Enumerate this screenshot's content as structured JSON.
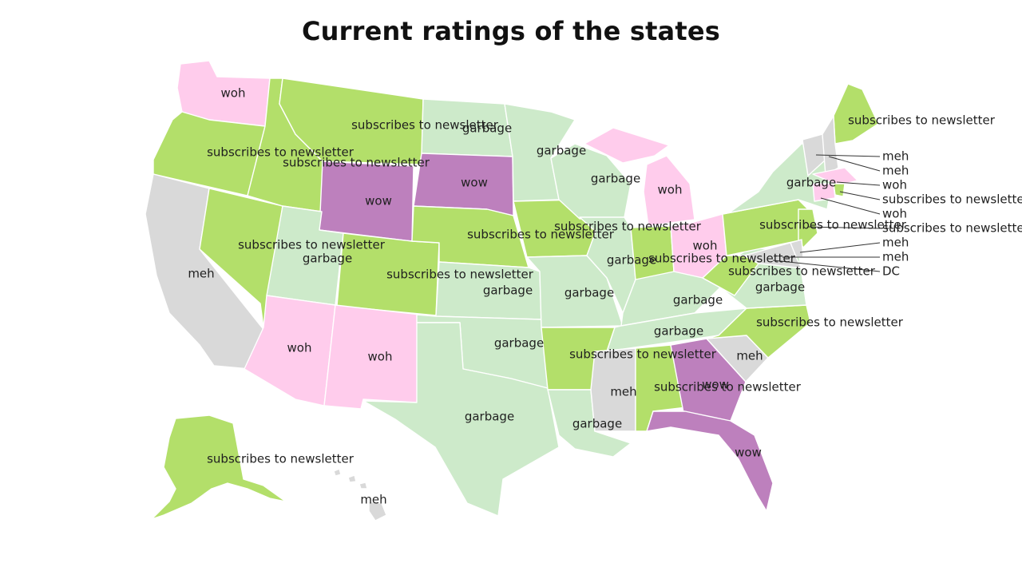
{
  "title": "Current ratings of the states",
  "palette": {
    "wow": "#bd80bd",
    "woh": "#ffccec",
    "subscribes to newsletter": "#b3df6a",
    "garbage": "#cdeaca",
    "meh": "#d9d9d9"
  },
  "states": [
    {
      "id": "WA",
      "rating": "woh"
    },
    {
      "id": "OR",
      "rating": "subscribes to newsletter"
    },
    {
      "id": "CA",
      "rating": "meh"
    },
    {
      "id": "NV",
      "rating": "subscribes to newsletter"
    },
    {
      "id": "ID",
      "rating": "subscribes to newsletter"
    },
    {
      "id": "MT",
      "rating": "subscribes to newsletter"
    },
    {
      "id": "WY",
      "rating": "wow"
    },
    {
      "id": "UT",
      "rating": "garbage"
    },
    {
      "id": "AZ",
      "rating": "woh"
    },
    {
      "id": "CO",
      "rating": "subscribes to newsletter"
    },
    {
      "id": "NM",
      "rating": "woh"
    },
    {
      "id": "ND",
      "rating": "garbage"
    },
    {
      "id": "SD",
      "rating": "wow"
    },
    {
      "id": "NE",
      "rating": "subscribes to newsletter"
    },
    {
      "id": "KS",
      "rating": "garbage"
    },
    {
      "id": "OK",
      "rating": "garbage"
    },
    {
      "id": "TX",
      "rating": "garbage"
    },
    {
      "id": "MN",
      "rating": "garbage"
    },
    {
      "id": "IA",
      "rating": "subscribes to newsletter"
    },
    {
      "id": "MO",
      "rating": "garbage"
    },
    {
      "id": "AR",
      "rating": "subscribes to newsletter"
    },
    {
      "id": "LA",
      "rating": "garbage"
    },
    {
      "id": "WI",
      "rating": "garbage"
    },
    {
      "id": "IL",
      "rating": "garbage"
    },
    {
      "id": "MI",
      "rating": "woh"
    },
    {
      "id": "IN",
      "rating": "subscribes to newsletter"
    },
    {
      "id": "OH",
      "rating": "woh"
    },
    {
      "id": "KY",
      "rating": "garbage"
    },
    {
      "id": "TN",
      "rating": "garbage"
    },
    {
      "id": "MS",
      "rating": "meh"
    },
    {
      "id": "AL",
      "rating": "subscribes to newsletter"
    },
    {
      "id": "GA",
      "rating": "wow"
    },
    {
      "id": "FL",
      "rating": "wow"
    },
    {
      "id": "SC",
      "rating": "meh"
    },
    {
      "id": "NC",
      "rating": "subscribes to newsletter"
    },
    {
      "id": "VA",
      "rating": "garbage"
    },
    {
      "id": "WV",
      "rating": "subscribes to newsletter"
    },
    {
      "id": "PA",
      "rating": "subscribes to newsletter"
    },
    {
      "id": "NY",
      "rating": "garbage"
    },
    {
      "id": "ME",
      "rating": "subscribes to newsletter"
    },
    {
      "id": "VT",
      "rating": "meh"
    },
    {
      "id": "NH",
      "rating": "meh"
    },
    {
      "id": "MA",
      "rating": "woh"
    },
    {
      "id": "RI",
      "rating": "subscribes to newsletter"
    },
    {
      "id": "CT",
      "rating": "woh"
    },
    {
      "id": "NJ",
      "rating": "subscribes to newsletter"
    },
    {
      "id": "DE",
      "rating": "meh"
    },
    {
      "id": "MD",
      "rating": "meh"
    },
    {
      "id": "AK",
      "rating": "subscribes to newsletter"
    },
    {
      "id": "HI",
      "rating": "meh"
    }
  ],
  "labels": [
    {
      "id": "WA",
      "text": "woh"
    },
    {
      "id": "OR",
      "text": "subscribes to newsletter"
    },
    {
      "id": "CA",
      "text": "meh"
    },
    {
      "id": "NV",
      "text": "subscribes to newsletter"
    },
    {
      "id": "ID",
      "text": "subscribes to newsletter"
    },
    {
      "id": "MT",
      "text": "subscribes to newsletter"
    },
    {
      "id": "WY",
      "text": "wow"
    },
    {
      "id": "UT",
      "text": "garbage"
    },
    {
      "id": "AZ",
      "text": "woh"
    },
    {
      "id": "CO",
      "text": "subscribes to newsletter"
    },
    {
      "id": "NM",
      "text": "woh"
    },
    {
      "id": "ND",
      "text": "garbage"
    },
    {
      "id": "SD",
      "text": "wow"
    },
    {
      "id": "NE",
      "text": "subscribes to newsletter"
    },
    {
      "id": "KS",
      "text": "garbage"
    },
    {
      "id": "OK",
      "text": "garbage"
    },
    {
      "id": "TX",
      "text": "garbage"
    },
    {
      "id": "MN",
      "text": "garbage"
    },
    {
      "id": "IA",
      "text": "subscribes to newsletter"
    },
    {
      "id": "MO",
      "text": "garbage"
    },
    {
      "id": "AR",
      "text": "subscribes to newsletter"
    },
    {
      "id": "LA",
      "text": "garbage"
    },
    {
      "id": "WI",
      "text": "garbage"
    },
    {
      "id": "IL",
      "text": "garbage"
    },
    {
      "id": "MI",
      "text": "woh"
    },
    {
      "id": "IN",
      "text": "subscribes to newsletter"
    },
    {
      "id": "OH",
      "text": "woh"
    },
    {
      "id": "KY",
      "text": "garbage"
    },
    {
      "id": "TN",
      "text": "garbage"
    },
    {
      "id": "MS",
      "text": "meh"
    },
    {
      "id": "AL",
      "text": "subscribes to newsletter"
    },
    {
      "id": "GA",
      "text": "wow"
    },
    {
      "id": "FL",
      "text": "wow"
    },
    {
      "id": "SC",
      "text": "meh"
    },
    {
      "id": "NC",
      "text": "subscribes to newsletter"
    },
    {
      "id": "VA",
      "text": "garbage"
    },
    {
      "id": "WV",
      "text": "subscribes to newsletter"
    },
    {
      "id": "PA",
      "text": "subscribes to newsletter"
    },
    {
      "id": "NY",
      "text": "garbage"
    },
    {
      "id": "ME",
      "text": "subscribes to newsletter"
    },
    {
      "id": "AK",
      "text": "subscribes to newsletter"
    },
    {
      "id": "HI",
      "text": "meh"
    },
    {
      "id": "VT",
      "text": "meh"
    },
    {
      "id": "NH",
      "text": "meh"
    },
    {
      "id": "MA",
      "text": "woh"
    },
    {
      "id": "RI",
      "text": "subscribes to newsletter"
    },
    {
      "id": "CT",
      "text": "woh"
    },
    {
      "id": "NJ",
      "text": "subscribes to newsletter"
    },
    {
      "id": "DE",
      "text": "meh"
    },
    {
      "id": "MD",
      "text": "meh"
    },
    {
      "id": "DC",
      "text": "DC"
    }
  ]
}
